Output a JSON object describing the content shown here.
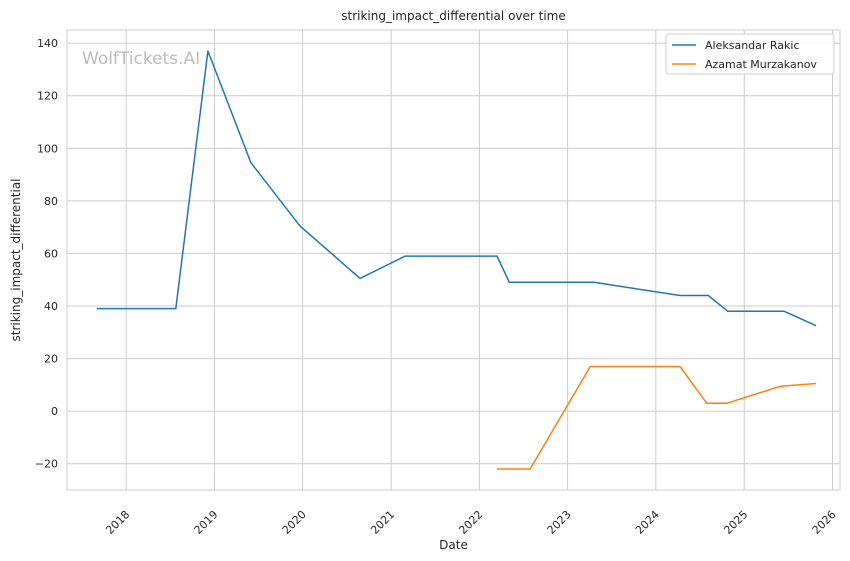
{
  "chart_data": {
    "type": "line",
    "title": "striking_impact_differential over time",
    "xlabel": "Date",
    "ylabel": "striking_impact_differential",
    "watermark": "WolfTickets.AI",
    "legend_position": "top-right",
    "grid": true,
    "xlim": [
      "2017-05-01",
      "2026-02-01"
    ],
    "ylim": [
      -30,
      145
    ],
    "x_ticks": [
      "2018",
      "2019",
      "2020",
      "2021",
      "2022",
      "2023",
      "2024",
      "2025",
      "2026"
    ],
    "y_ticks": [
      -20,
      0,
      20,
      40,
      60,
      80,
      100,
      120,
      140
    ],
    "series": [
      {
        "name": "Aleksandar Rakic",
        "color": "#1f77b4",
        "points": [
          {
            "x": "2017-09-01",
            "y": 39
          },
          {
            "x": "2018-07-25",
            "y": 39
          },
          {
            "x": "2018-12-05",
            "y": 137
          },
          {
            "x": "2019-06-01",
            "y": 94.5
          },
          {
            "x": "2019-12-20",
            "y": 70.5
          },
          {
            "x": "2020-08-25",
            "y": 50.5
          },
          {
            "x": "2021-02-28",
            "y": 59
          },
          {
            "x": "2022-03-15",
            "y": 59
          },
          {
            "x": "2022-05-05",
            "y": 49
          },
          {
            "x": "2023-04-20",
            "y": 49
          },
          {
            "x": "2024-04-10",
            "y": 44
          },
          {
            "x": "2024-08-05",
            "y": 44
          },
          {
            "x": "2024-10-25",
            "y": 38
          },
          {
            "x": "2025-06-15",
            "y": 38
          },
          {
            "x": "2025-10-25",
            "y": 32.5
          }
        ]
      },
      {
        "name": "Azamat Murzakanov",
        "color": "#ff7f0e",
        "points": [
          {
            "x": "2022-03-15",
            "y": -22
          },
          {
            "x": "2022-07-30",
            "y": -22
          },
          {
            "x": "2023-04-05",
            "y": 17
          },
          {
            "x": "2024-04-10",
            "y": 17
          },
          {
            "x": "2024-07-30",
            "y": 3
          },
          {
            "x": "2024-10-20",
            "y": 3
          },
          {
            "x": "2025-06-01",
            "y": 9.5
          },
          {
            "x": "2025-10-25",
            "y": 10.5
          }
        ]
      }
    ]
  }
}
